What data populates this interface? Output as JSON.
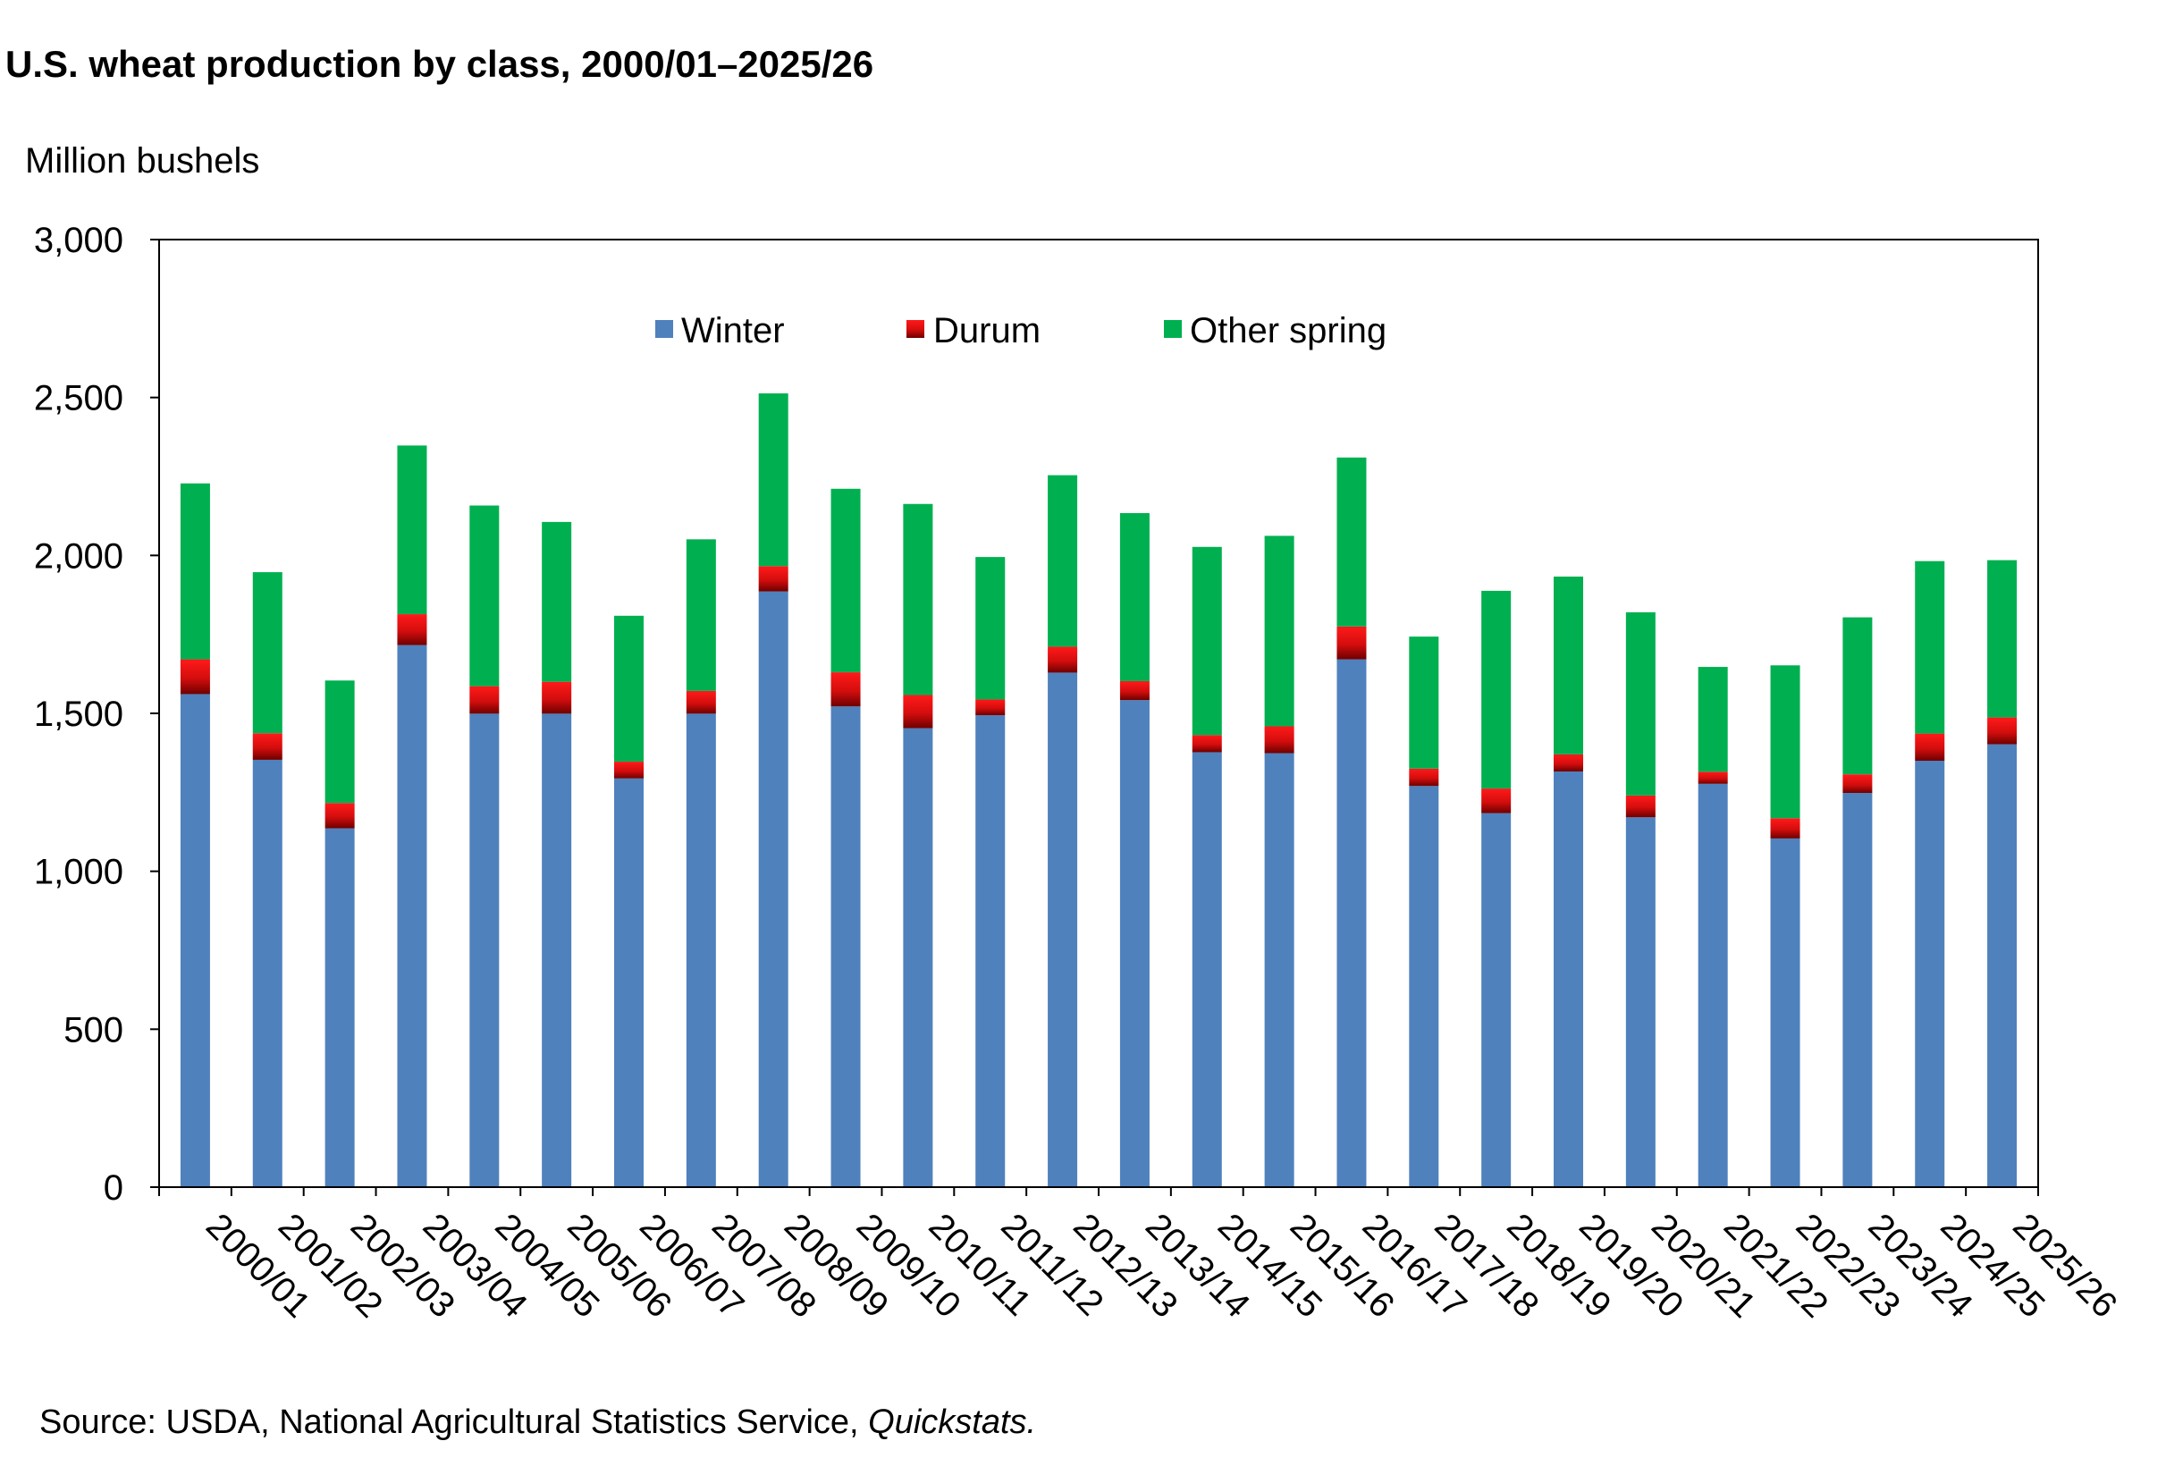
{
  "chart_data": {
    "type": "bar",
    "stacked": true,
    "title": "U.S. wheat production by class, 2000/01–2025/26",
    "ylabel": "Million bushels",
    "ylim": [
      0,
      3000
    ],
    "yticks": [
      0,
      500,
      1000,
      1500,
      2000,
      2500,
      3000
    ],
    "ytick_labels": [
      "0",
      "500",
      "1,000",
      "1,500",
      "2,000",
      "2,500",
      "3,000"
    ],
    "grid": false,
    "legend_position": "top-center",
    "categories": [
      "2000/01",
      "2001/02",
      "2002/03",
      "2003/04",
      "2004/05",
      "2005/06",
      "2006/07",
      "2007/08",
      "2008/09",
      "2009/10",
      "2010/11",
      "2011/12",
      "2012/13",
      "2013/14",
      "2014/15",
      "2015/16",
      "2016/17",
      "2017/18",
      "2018/19",
      "2019/20",
      "2020/21",
      "2021/22",
      "2022/23",
      "2023/24",
      "2024/25",
      "2025/26"
    ],
    "series": [
      {
        "name": "Winter",
        "color": "#4F81BD",
        "values": [
          1561,
          1353,
          1136,
          1716,
          1499,
          1499,
          1294,
          1499,
          1886,
          1522,
          1453,
          1494,
          1629,
          1542,
          1377,
          1374,
          1671,
          1270,
          1184,
          1316,
          1171,
          1277,
          1104,
          1248,
          1350,
          1402
        ]
      },
      {
        "name": "Durum",
        "color": "#E41E1E",
        "values": [
          110,
          84,
          80,
          98,
          87,
          101,
          53,
          72,
          80,
          108,
          105,
          50,
          82,
          60,
          54,
          85,
          104,
          55,
          78,
          54,
          69,
          38,
          64,
          59,
          86,
          85
        ]
      },
      {
        "name": "Other spring",
        "color": "#00B050",
        "values": [
          557,
          510,
          388,
          534,
          572,
          506,
          462,
          480,
          547,
          581,
          605,
          451,
          543,
          532,
          596,
          603,
          535,
          418,
          626,
          563,
          580,
          332,
          484,
          497,
          546,
          498
        ]
      }
    ]
  },
  "legend": {
    "winter": "Winter",
    "durum": "Durum",
    "other_spring": "Other spring"
  },
  "source": {
    "prefix": "Source: USDA, National Agricultural Statistics Service, ",
    "italic": "Quickstats."
  }
}
